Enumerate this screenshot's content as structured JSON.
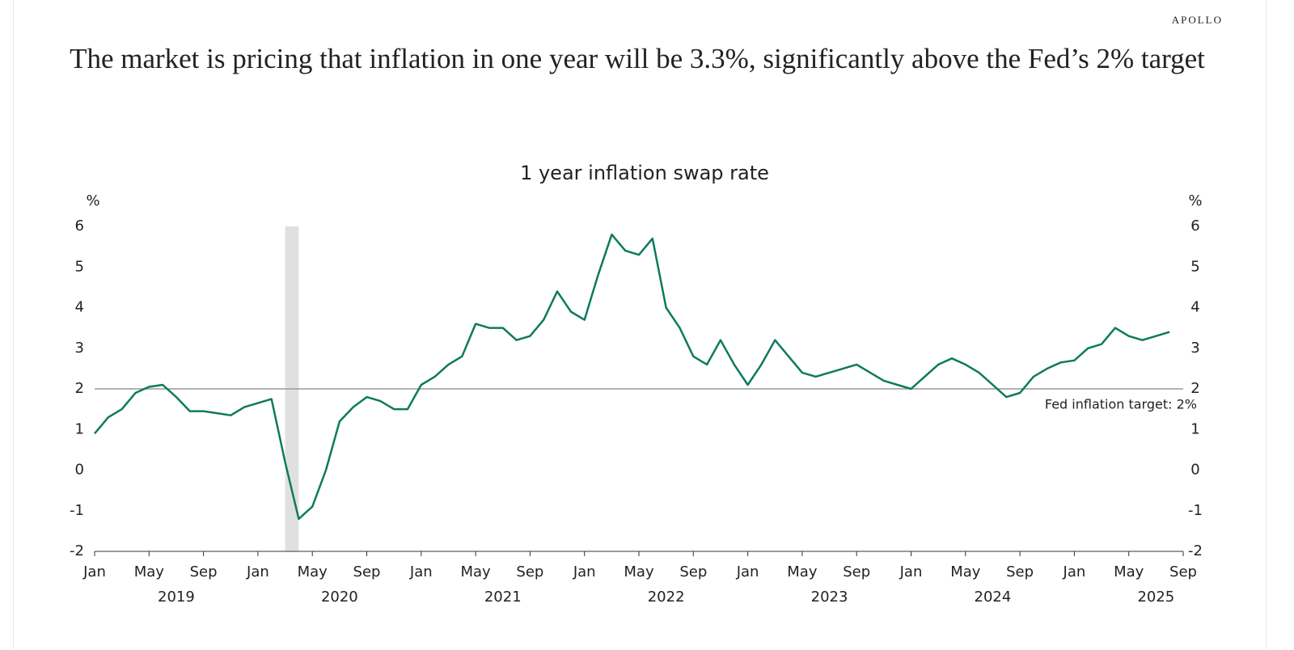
{
  "header": {
    "brand": "APOLLO",
    "headline": "The market is pricing that inflation in one year will be 3.3%, significantly above the Fed’s 2% target"
  },
  "chart_data": {
    "type": "line",
    "title": "1 year inflation swap rate",
    "y_unit": "%",
    "y2_unit": "%",
    "x": [
      "2019-01",
      "2019-02",
      "2019-03",
      "2019-04",
      "2019-05",
      "2019-06",
      "2019-07",
      "2019-08",
      "2019-09",
      "2019-10",
      "2019-11",
      "2019-12",
      "2020-01",
      "2020-02",
      "2020-03",
      "2020-04",
      "2020-05",
      "2020-06",
      "2020-07",
      "2020-08",
      "2020-09",
      "2020-10",
      "2020-11",
      "2020-12",
      "2021-01",
      "2021-02",
      "2021-03",
      "2021-04",
      "2021-05",
      "2021-06",
      "2021-07",
      "2021-08",
      "2021-09",
      "2021-10",
      "2021-11",
      "2021-12",
      "2022-01",
      "2022-02",
      "2022-03",
      "2022-04",
      "2022-05",
      "2022-06",
      "2022-07",
      "2022-08",
      "2022-09",
      "2022-10",
      "2022-11",
      "2022-12",
      "2023-01",
      "2023-02",
      "2023-03",
      "2023-04",
      "2023-05",
      "2023-06",
      "2023-07",
      "2023-08",
      "2023-09",
      "2023-10",
      "2023-11",
      "2023-12",
      "2024-01",
      "2024-02",
      "2024-03",
      "2024-04",
      "2024-05",
      "2024-06",
      "2024-07",
      "2024-08",
      "2024-09",
      "2024-10",
      "2024-11",
      "2024-12",
      "2025-01",
      "2025-02",
      "2025-03",
      "2025-04",
      "2025-05",
      "2025-06",
      "2025-07",
      "2025-08"
    ],
    "series": [
      {
        "name": "1 year inflation swap rate",
        "color": "#0e7a5e",
        "values": [
          0.9,
          1.3,
          1.5,
          1.9,
          2.05,
          2.1,
          1.8,
          1.45,
          1.45,
          1.4,
          1.35,
          1.55,
          1.65,
          1.75,
          0.2,
          -1.2,
          -0.9,
          0.0,
          1.2,
          1.55,
          1.8,
          1.7,
          1.5,
          1.5,
          2.1,
          2.3,
          2.6,
          2.8,
          3.6,
          3.5,
          3.5,
          3.2,
          3.3,
          3.7,
          4.4,
          3.9,
          3.7,
          4.8,
          5.8,
          5.4,
          5.3,
          5.7,
          4.0,
          3.5,
          2.8,
          2.6,
          3.2,
          2.6,
          2.1,
          2.6,
          3.2,
          2.8,
          2.4,
          2.3,
          2.4,
          2.5,
          2.6,
          2.4,
          2.2,
          2.1,
          2.0,
          2.3,
          2.6,
          2.75,
          2.6,
          2.4,
          2.1,
          1.8,
          1.9,
          2.3,
          2.5,
          2.65,
          2.7,
          3.0,
          3.1,
          3.5,
          3.3,
          3.2,
          3.3,
          3.4
        ]
      }
    ],
    "xlim": [
      "2019-01",
      "2025-09"
    ],
    "xticks": [
      {
        "value": "2019-01",
        "label": "Jan"
      },
      {
        "value": "2019-05",
        "label": "May"
      },
      {
        "value": "2019-09",
        "label": "Sep"
      },
      {
        "value": "2020-01",
        "label": "Jan"
      },
      {
        "value": "2020-05",
        "label": "May"
      },
      {
        "value": "2020-09",
        "label": "Sep"
      },
      {
        "value": "2021-01",
        "label": "Jan"
      },
      {
        "value": "2021-05",
        "label": "May"
      },
      {
        "value": "2021-09",
        "label": "Sep"
      },
      {
        "value": "2022-01",
        "label": "Jan"
      },
      {
        "value": "2022-05",
        "label": "May"
      },
      {
        "value": "2022-09",
        "label": "Sep"
      },
      {
        "value": "2023-01",
        "label": "Jan"
      },
      {
        "value": "2023-05",
        "label": "May"
      },
      {
        "value": "2023-09",
        "label": "Sep"
      },
      {
        "value": "2024-01",
        "label": "Jan"
      },
      {
        "value": "2024-05",
        "label": "May"
      },
      {
        "value": "2024-09",
        "label": "Sep"
      },
      {
        "value": "2025-01",
        "label": "Jan"
      },
      {
        "value": "2025-05",
        "label": "May"
      },
      {
        "value": "2025-09",
        "label": "Sep"
      }
    ],
    "years": [
      "2019",
      "2020",
      "2021",
      "2022",
      "2023",
      "2024",
      "2025"
    ],
    "ylim": [
      -2,
      6
    ],
    "yticks": [
      -2,
      -1,
      0,
      1,
      2,
      3,
      4,
      5,
      6
    ],
    "y2lim": [
      -2,
      6
    ],
    "y2ticks": [
      -2,
      -1,
      0,
      1,
      2,
      3,
      4,
      5,
      6
    ],
    "reference_line": {
      "value": 2,
      "label": "Fed inflation target: 2%",
      "color": "#999999"
    },
    "shaded_spans": [
      {
        "x": [
          "2020-03",
          "2020-04"
        ],
        "color": "#e0e0e0"
      }
    ],
    "grid": false
  }
}
